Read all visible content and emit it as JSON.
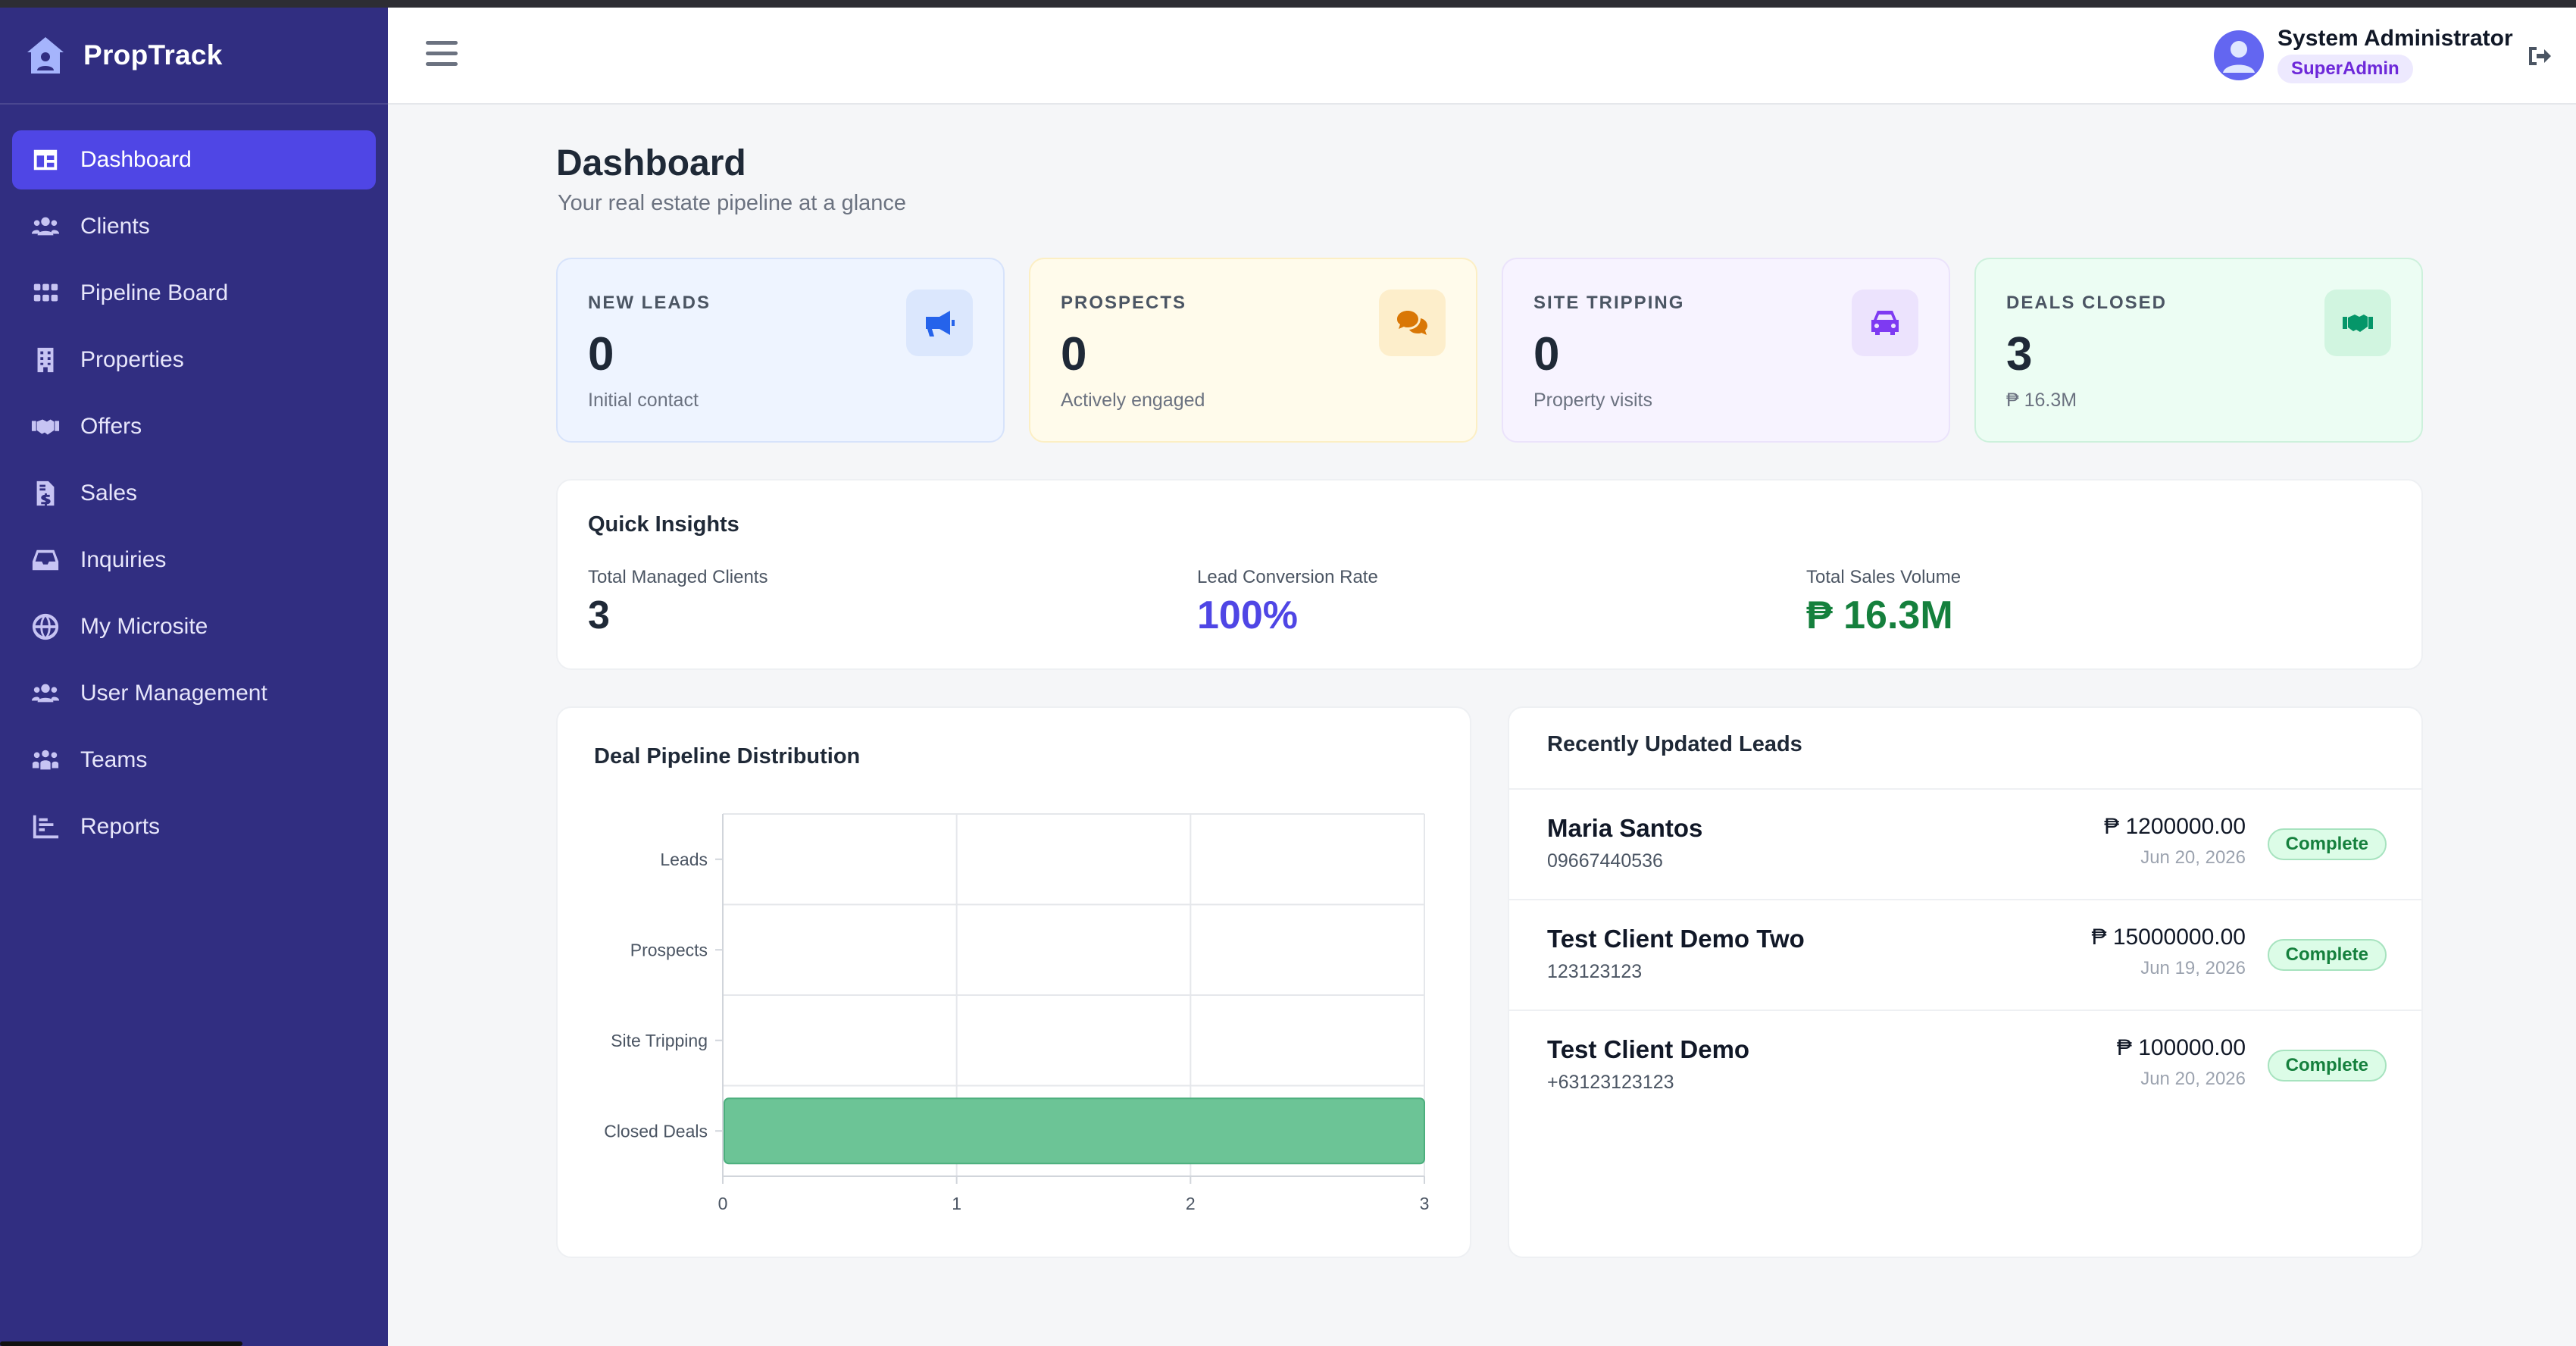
{
  "app": {
    "name": "PropTrack"
  },
  "sidebar": {
    "items": [
      {
        "label": "Dashboard",
        "icon": "dashboard-icon",
        "active": true
      },
      {
        "label": "Clients",
        "icon": "users-icon"
      },
      {
        "label": "Pipeline Board",
        "icon": "grid-icon"
      },
      {
        "label": "Properties",
        "icon": "building-icon"
      },
      {
        "label": "Offers",
        "icon": "handshake-icon"
      },
      {
        "label": "Sales",
        "icon": "invoice-dollar-icon"
      },
      {
        "label": "Inquiries",
        "icon": "inbox-icon"
      },
      {
        "label": "My Microsite",
        "icon": "globe-icon"
      },
      {
        "label": "User Management",
        "icon": "users-cog-icon"
      },
      {
        "label": "Teams",
        "icon": "people-group-icon"
      },
      {
        "label": "Reports",
        "icon": "bar-chart-icon"
      }
    ]
  },
  "header": {
    "user_name": "System Administrator",
    "user_role": "SuperAdmin"
  },
  "page": {
    "title": "Dashboard",
    "subtitle": "Your real estate pipeline at a glance"
  },
  "stats": [
    {
      "label": "NEW LEADS",
      "value": "0",
      "sub": "Initial contact",
      "icon": "megaphone-icon",
      "bg": "#eef4ff",
      "border": "#d7e3fb",
      "icon_bg": "#dbe7fd",
      "icon_color": "#2563eb"
    },
    {
      "label": "PROSPECTS",
      "value": "0",
      "sub": "Actively engaged",
      "icon": "comments-icon",
      "bg": "#fffbeb",
      "border": "#fcefc4",
      "icon_bg": "#fdeecb",
      "icon_color": "#d97706"
    },
    {
      "label": "SITE TRIPPING",
      "value": "0",
      "sub": "Property visits",
      "icon": "car-icon",
      "bg": "#f7f3ff",
      "border": "#ebe3fb",
      "icon_bg": "#ece3fd",
      "icon_color": "#7e3af2"
    },
    {
      "label": "DEALS CLOSED",
      "value": "3",
      "sub": "₱ 16.3M",
      "icon": "handshake-icon",
      "bg": "#ecfdf3",
      "border": "#cdf1dc",
      "icon_bg": "#d1f5e0",
      "icon_color": "#059669"
    }
  ],
  "insights": {
    "title": "Quick Insights",
    "items": [
      {
        "label": "Total Managed Clients",
        "value": "3",
        "color": "#1f2937"
      },
      {
        "label": "Lead Conversion Rate",
        "value": "100%",
        "color": "#4f46e5"
      },
      {
        "label": "Total Sales Volume",
        "value": "₱ 16.3M",
        "color": "#15803d"
      }
    ]
  },
  "chart_data": {
    "type": "bar",
    "orientation": "horizontal",
    "title": "Deal Pipeline Distribution",
    "categories": [
      "Leads",
      "Prospects",
      "Site Tripping",
      "Closed Deals"
    ],
    "values": [
      0,
      0,
      0,
      3
    ],
    "xlim": [
      0,
      3
    ],
    "x_ticks": [
      "0",
      "1",
      "2",
      "3"
    ],
    "grid": true,
    "bar_color": "#6cc496"
  },
  "recent_leads": {
    "title": "Recently Updated Leads",
    "items": [
      {
        "name": "Maria Santos",
        "phone": "09667440536",
        "amount": "₱ 1200000.00",
        "date": "Jun 20, 2026",
        "status": "Complete"
      },
      {
        "name": "Test Client Demo Two",
        "phone": "123123123",
        "amount": "₱ 15000000.00",
        "date": "Jun 19, 2026",
        "status": "Complete"
      },
      {
        "name": "Test Client Demo",
        "phone": "+63123123123",
        "amount": "₱ 100000.00",
        "date": "Jun 20, 2026",
        "status": "Complete"
      }
    ]
  }
}
